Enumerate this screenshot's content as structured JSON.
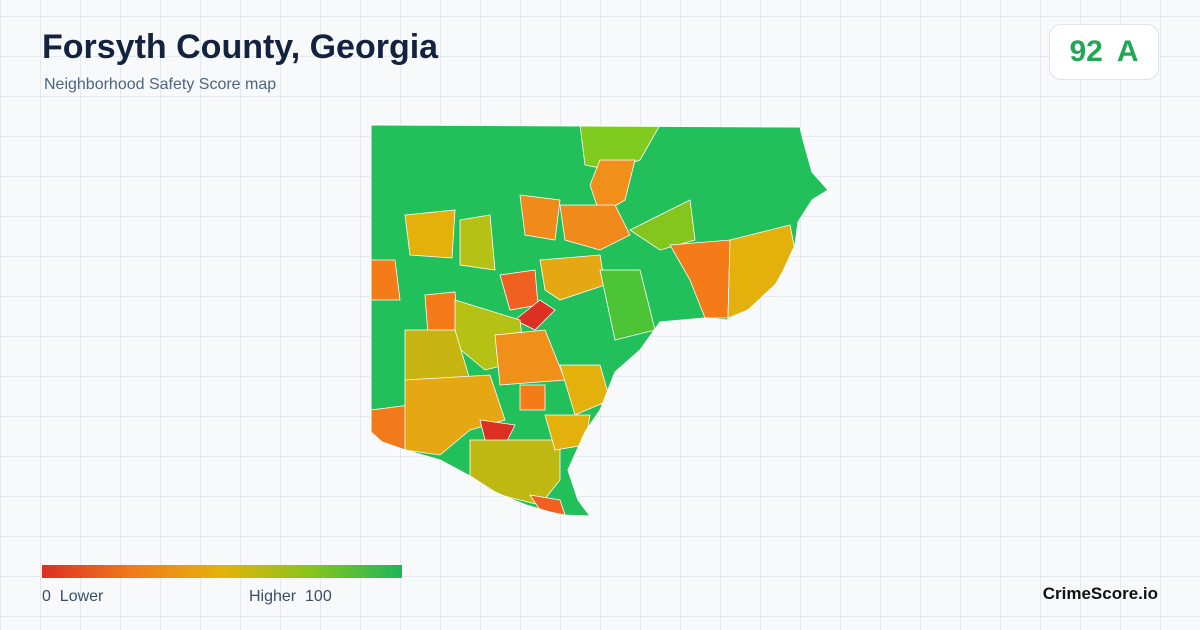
{
  "header": {
    "title": "Forsyth County, Georgia",
    "subtitle": "Neighborhood Safety Score map"
  },
  "score": {
    "value": 92,
    "grade": "A"
  },
  "legend": {
    "min": 0,
    "min_label": "Lower",
    "max_label": "Higher",
    "max": 100
  },
  "footer": {
    "brand": "CrimeScore.io"
  }
}
